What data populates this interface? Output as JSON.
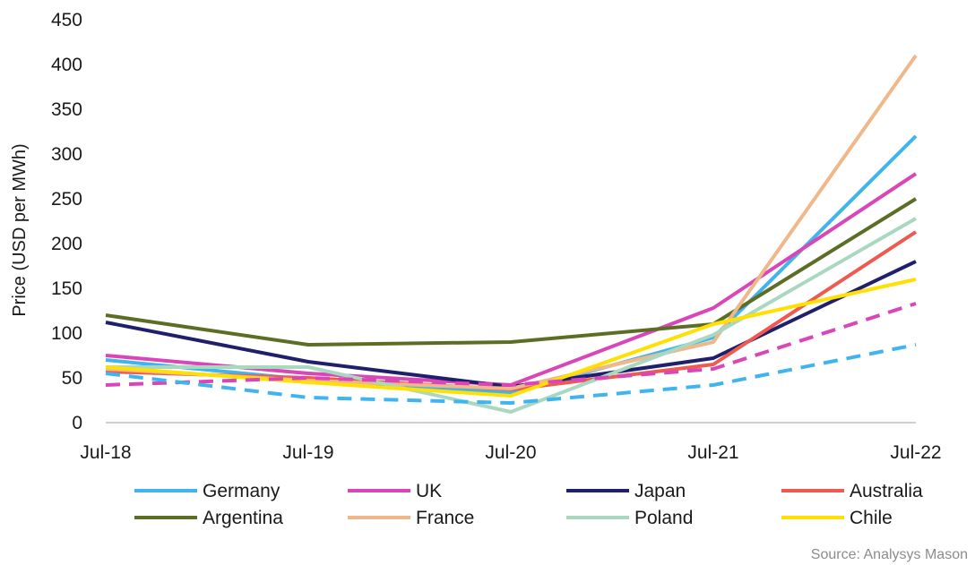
{
  "chart_data": {
    "type": "line",
    "title": "",
    "xlabel": "",
    "ylabel": "Price (USD per MWh)",
    "ylim": [
      0,
      450
    ],
    "y_ticks": [
      "0",
      "50",
      "100",
      "150",
      "200",
      "250",
      "300",
      "350",
      "400",
      "450"
    ],
    "categories": [
      "Jul-18",
      "Jul-19",
      "Jul-20",
      "Jul-21",
      "Jul-22"
    ],
    "grid": false,
    "legend_position": "bottom",
    "series": [
      {
        "name": "Germany",
        "color": "#3fb4ee",
        "style": "solid",
        "values": [
          70,
          48,
          33,
          95,
          320
        ]
      },
      {
        "name": "UK",
        "color": "#d946b8",
        "style": "solid",
        "values": [
          75,
          55,
          42,
          128,
          278
        ]
      },
      {
        "name": "Japan",
        "color": "#1f1f6b",
        "style": "solid",
        "values": [
          112,
          68,
          40,
          72,
          180
        ]
      },
      {
        "name": "Australia",
        "color": "#ef5a50",
        "style": "solid",
        "values": [
          57,
          50,
          37,
          65,
          213
        ]
      },
      {
        "name": "Argentina",
        "color": "#5c6e24",
        "style": "solid",
        "values": [
          120,
          87,
          90,
          110,
          250
        ]
      },
      {
        "name": "France",
        "color": "#f0b788",
        "style": "solid",
        "values": [
          60,
          47,
          38,
          90,
          410
        ]
      },
      {
        "name": "Poland",
        "color": "#a8d8c0",
        "style": "solid",
        "values": [
          62,
          62,
          12,
          98,
          228
        ]
      },
      {
        "name": "Chile",
        "color": "#ffe000",
        "style": "solid",
        "values": [
          62,
          45,
          30,
          110,
          160
        ]
      },
      {
        "name": "",
        "color": "#d946b8",
        "style": "dashed",
        "values": [
          42,
          50,
          42,
          60,
          133
        ]
      },
      {
        "name": "",
        "color": "#3fb4ee",
        "style": "dashed",
        "values": [
          55,
          28,
          22,
          42,
          87
        ]
      }
    ],
    "source": "Source: Analysys Mason"
  }
}
